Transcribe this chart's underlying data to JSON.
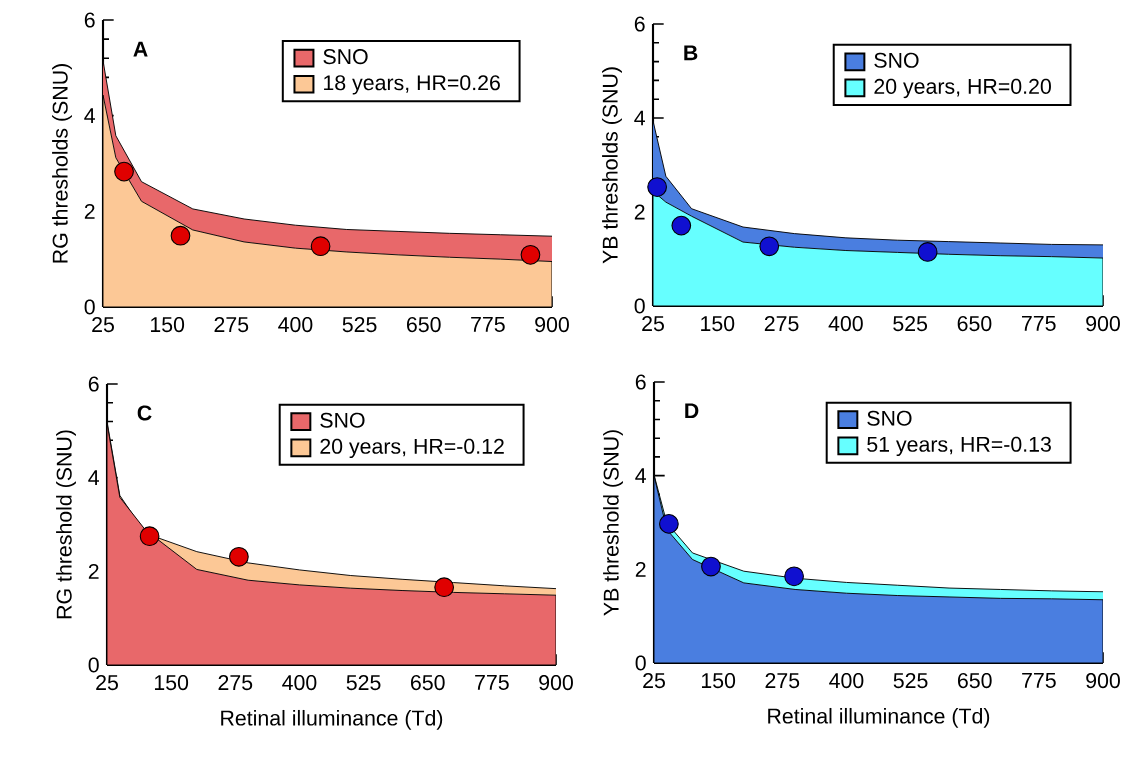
{
  "chart_data": [
    {
      "type": "area",
      "annotations": [
        "A"
      ],
      "ylabel": "RG thresholds (SNU)",
      "x": [
        25,
        50,
        100,
        200,
        300,
        400,
        500,
        600,
        700,
        800,
        900
      ],
      "series": [
        {
          "name": "SNO",
          "color": "#e8686a",
          "values": [
            5.15,
            3.58,
            2.62,
            2.05,
            1.84,
            1.71,
            1.62,
            1.58,
            1.54,
            1.51,
            1.48
          ]
        },
        {
          "name": "18 years, HR=0.26",
          "color": "#fcc896",
          "values": [
            4.43,
            3.12,
            2.21,
            1.61,
            1.36,
            1.23,
            1.15,
            1.09,
            1.04,
            1.0,
            0.95
          ]
        },
        {
          "type": "scatter",
          "color": "#e00000",
          "x": [
            66,
            176,
            449,
            858
          ],
          "values": [
            2.83,
            1.49,
            1.27,
            1.09
          ]
        }
      ],
      "xlim": [
        25,
        900
      ],
      "ylim": [
        0,
        6
      ],
      "xticks": [
        25,
        150,
        275,
        400,
        525,
        650,
        775,
        900
      ],
      "yticks": [
        0,
        2,
        4,
        6
      ],
      "legend": "top right"
    },
    {
      "type": "area",
      "annotations": [
        "B"
      ],
      "ylabel": "YB thresholds (SNU)",
      "x": [
        25,
        50,
        100,
        200,
        300,
        400,
        500,
        600,
        700,
        800,
        900
      ],
      "series": [
        {
          "name": "SNO",
          "color": "#4a7ee0",
          "values": [
            3.94,
            2.76,
            2.07,
            1.68,
            1.54,
            1.45,
            1.4,
            1.37,
            1.34,
            1.31,
            1.3
          ]
        },
        {
          "name": "20 years, HR=0.20",
          "color": "#66ffff",
          "values": [
            2.44,
            2.21,
            1.91,
            1.36,
            1.25,
            1.18,
            1.14,
            1.1,
            1.07,
            1.05,
            1.02
          ]
        },
        {
          "type": "scatter",
          "color": "#1010d0",
          "x": [
            33,
            80,
            251,
            559
          ],
          "values": [
            2.53,
            1.71,
            1.27,
            1.15
          ]
        }
      ],
      "xlim": [
        25,
        900
      ],
      "ylim": [
        0,
        6
      ],
      "xticks": [
        25,
        150,
        275,
        400,
        525,
        650,
        775,
        900
      ],
      "yticks": [
        0,
        2,
        4,
        6
      ],
      "legend": "top right"
    },
    {
      "type": "area",
      "annotations": [
        "C"
      ],
      "ylabel": "RG threshold (SNU)",
      "xlabel": "Retinal illuminance (Td)",
      "x": [
        25,
        50,
        100,
        200,
        300,
        400,
        500,
        600,
        700,
        800,
        900
      ],
      "series": [
        {
          "name": "SNO",
          "color": "#e8686a",
          "values": [
            5.16,
            3.58,
            2.88,
            2.04,
            1.81,
            1.71,
            1.64,
            1.59,
            1.55,
            1.52,
            1.49
          ]
        },
        {
          "name": "20 years, HR=-0.12",
          "color": "#fcc896",
          "values": [
            5.2,
            3.62,
            2.81,
            2.42,
            2.18,
            2.03,
            1.91,
            1.83,
            1.76,
            1.69,
            1.63
          ]
        },
        {
          "type": "scatter",
          "color": "#e00000",
          "x": [
            108,
            282,
            682
          ],
          "values": [
            2.75,
            2.31,
            1.66
          ]
        }
      ],
      "xlim": [
        25,
        900
      ],
      "ylim": [
        0,
        6
      ],
      "xticks": [
        25,
        150,
        275,
        400,
        525,
        650,
        775,
        900
      ],
      "yticks": [
        0,
        2,
        4,
        6
      ],
      "legend": "top right"
    },
    {
      "type": "area",
      "annotations": [
        "D"
      ],
      "ylabel": "YB threshold (SNU)",
      "xlabel": "Retinal illuminance (Td)",
      "x": [
        25,
        50,
        100,
        200,
        300,
        400,
        500,
        600,
        700,
        800,
        900
      ],
      "series": [
        {
          "type": "scatter",
          "color": "#1010d0",
          "x": [
            54,
            136,
            298
          ],
          "values": [
            2.97,
            2.06,
            1.85
          ]
        },
        {
          "name": "SNO",
          "color": "#4a7ee0",
          "values": [
            4.0,
            2.85,
            2.21,
            1.71,
            1.57,
            1.49,
            1.44,
            1.41,
            1.38,
            1.37,
            1.35
          ]
        },
        {
          "name": "51 years, HR=-0.13",
          "color": "#66ffff",
          "values": [
            4.02,
            2.99,
            2.35,
            1.96,
            1.81,
            1.72,
            1.66,
            1.6,
            1.57,
            1.54,
            1.52
          ]
        }
      ],
      "xlim": [
        25,
        900
      ],
      "ylim": [
        0,
        6
      ],
      "xticks": [
        25,
        150,
        275,
        400,
        525,
        650,
        775,
        900
      ],
      "yticks": [
        0,
        2,
        4,
        6
      ],
      "legend": "top right"
    }
  ]
}
